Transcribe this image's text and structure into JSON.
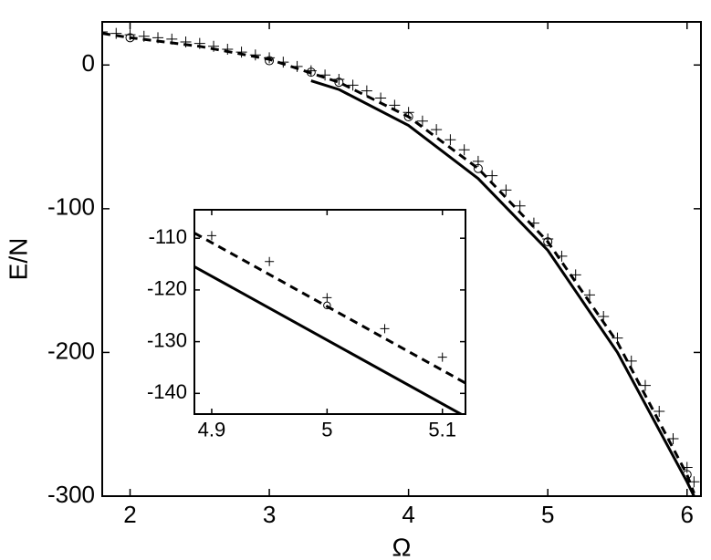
{
  "chart_data": [
    {
      "type": "line",
      "xlabel": "Ω",
      "ylabel": "E/N",
      "xlim": [
        1.8,
        6.1
      ],
      "ylim": [
        -300,
        30
      ],
      "xticks": [
        2,
        3,
        4,
        5,
        6
      ],
      "yticks": [
        0,
        -100,
        -200,
        -300
      ],
      "series": [
        {
          "line_style": "solid",
          "color": "#000000",
          "x": [
            3.3,
            3.5,
            4.0,
            4.5,
            5.0,
            5.5,
            6.0,
            6.05
          ],
          "values": [
            -11,
            -17,
            -42,
            -79,
            -129,
            -200,
            -290,
            -300
          ]
        },
        {
          "line_style": "dashed",
          "color": "#000000",
          "x": [
            1.8,
            2.0,
            2.5,
            3.0,
            3.5,
            4.0,
            4.5,
            5.0,
            5.5,
            6.0,
            6.05
          ],
          "values": [
            22,
            19,
            13,
            4,
            -12,
            -36,
            -72,
            -123,
            -193,
            -285,
            -298
          ]
        },
        {
          "marker": "+",
          "color": "#000000",
          "x": [
            1.8,
            1.9,
            2.0,
            2.1,
            2.2,
            2.3,
            2.4,
            2.5,
            2.6,
            2.7,
            2.8,
            2.9,
            3.0,
            3.1,
            3.2,
            3.3,
            3.4,
            3.5,
            3.6,
            3.7,
            3.8,
            3.9,
            4.0,
            4.1,
            4.2,
            4.3,
            4.4,
            4.5,
            4.6,
            4.7,
            4.8,
            4.9,
            5.0,
            5.1,
            5.2,
            5.3,
            5.4,
            5.5,
            5.6,
            5.7,
            5.8,
            5.9,
            6.0,
            6.05
          ],
          "values": [
            23,
            22,
            21,
            20,
            19,
            18,
            16,
            15,
            13,
            11,
            9,
            7,
            5,
            2,
            -1,
            -4,
            -7,
            -10,
            -14,
            -18,
            -23,
            -28,
            -33,
            -39,
            -45,
            -52,
            -59,
            -67,
            -77,
            -87,
            -98,
            -110,
            -121,
            -133,
            -146,
            -160,
            -175,
            -190,
            -206,
            -223,
            -241,
            -260,
            -280,
            -290
          ]
        },
        {
          "marker": "o",
          "color": "#000000",
          "x": [
            2.0,
            3.0,
            3.3,
            3.5,
            4.0,
            4.5,
            5.0,
            6.0
          ],
          "values": [
            19,
            3,
            -5,
            -12,
            -36,
            -72,
            -123,
            -285
          ]
        }
      ]
    },
    {
      "type": "line",
      "xlim": [
        4.885,
        5.12
      ],
      "ylim": [
        -144,
        -104.5
      ],
      "xticks": [
        4.9,
        5,
        5.1
      ],
      "yticks": [
        -110,
        -120,
        -130,
        -140
      ],
      "series": [
        {
          "line_style": "solid",
          "color": "#000000",
          "x": [
            4.885,
            5.12
          ],
          "values": [
            -115.5,
            -144.5
          ]
        },
        {
          "line_style": "dashed",
          "color": "#000000",
          "x": [
            4.885,
            5.12
          ],
          "values": [
            -109,
            -138
          ]
        },
        {
          "marker": "+",
          "color": "#000000",
          "x": [
            4.9,
            4.95,
            5.0,
            5.05,
            5.1
          ],
          "values": [
            -109.5,
            -114.5,
            -121.5,
            -127.5,
            -133
          ]
        },
        {
          "marker": "o",
          "color": "#000000",
          "x": [
            5.0
          ],
          "values": [
            -123
          ]
        }
      ]
    }
  ]
}
